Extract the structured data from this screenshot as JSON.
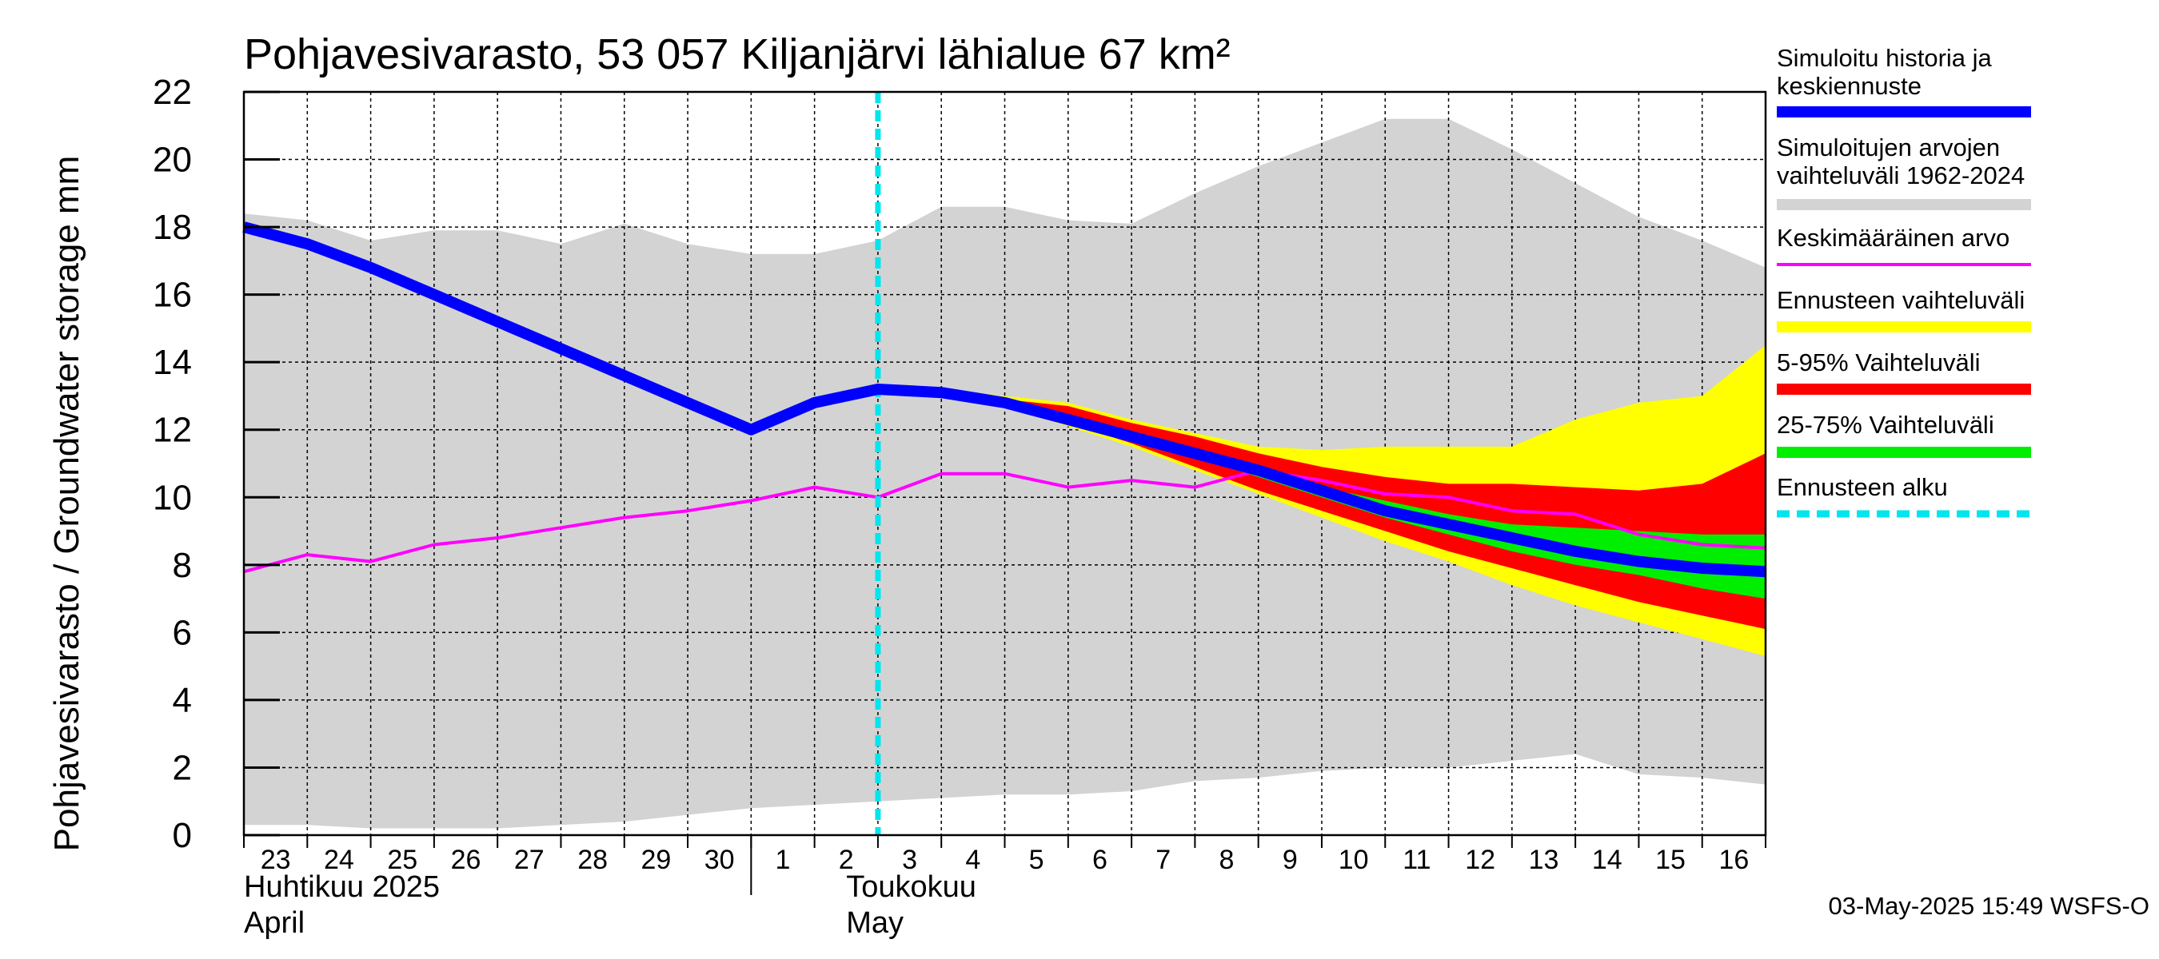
{
  "chart_data": {
    "type": "area",
    "title": "Pohjavesivarasto, 53 057 Kiljanjärvi lähialue 67 km²",
    "ylabel": "Pohjavesivarasto / Groundwater storage   mm",
    "ylim": [
      0,
      22
    ],
    "yticks": [
      0,
      2,
      4,
      6,
      8,
      10,
      12,
      14,
      16,
      18,
      20,
      22
    ],
    "x_day_labels": [
      "23",
      "24",
      "25",
      "26",
      "27",
      "28",
      "29",
      "30",
      "1",
      "2",
      "3",
      "4",
      "5",
      "6",
      "7",
      "8",
      "9",
      "10",
      "11",
      "12",
      "13",
      "14",
      "15",
      "16"
    ],
    "x_range": [
      0,
      24
    ],
    "month_labels": [
      {
        "line1": "Huhtikuu  2025",
        "line2": "April",
        "x": 0
      },
      {
        "line1": "Toukokuu",
        "line2": "May",
        "x": 9.5
      }
    ],
    "month_divider_x": 8,
    "forecast_start_x": 10.0,
    "timestamp": "03-May-2025 15:49 WSFS-O",
    "series": [
      {
        "name": "Simuloitujen arvojen vaihteluväli 1962-2024",
        "color": "#d3d3d3",
        "x": [
          0,
          1,
          2,
          3,
          4,
          5,
          6,
          7,
          8,
          9,
          10,
          11,
          12,
          13,
          14,
          15,
          16,
          17,
          18,
          19,
          20,
          21,
          22,
          23,
          24
        ],
        "upper": [
          18.4,
          18.2,
          17.6,
          17.9,
          17.9,
          17.5,
          18.1,
          17.5,
          17.2,
          17.2,
          17.6,
          18.6,
          18.6,
          18.2,
          18.1,
          19.0,
          19.8,
          20.5,
          21.2,
          21.2,
          20.3,
          19.3,
          18.3,
          17.6,
          16.8
        ],
        "lower": [
          0.3,
          0.3,
          0.2,
          0.2,
          0.2,
          0.3,
          0.4,
          0.6,
          0.8,
          0.9,
          1.0,
          1.1,
          1.2,
          1.2,
          1.3,
          1.6,
          1.7,
          1.9,
          2.0,
          2.0,
          2.2,
          2.4,
          1.8,
          1.7,
          1.5
        ]
      },
      {
        "name": "Ennusteen vaihteluväli",
        "color": "#ffff00",
        "x": [
          10,
          11,
          12,
          13,
          14,
          15,
          16,
          17,
          18,
          19,
          20,
          21,
          22,
          23,
          24
        ],
        "upper": [
          13.2,
          13.2,
          13.0,
          12.8,
          12.3,
          11.9,
          11.5,
          11.4,
          11.5,
          11.5,
          11.5,
          12.3,
          12.8,
          13.0,
          14.5
        ],
        "lower": [
          13.2,
          13.1,
          12.7,
          12.1,
          11.5,
          10.8,
          10.1,
          9.4,
          8.7,
          8.1,
          7.4,
          6.8,
          6.3,
          5.8,
          5.3
        ]
      },
      {
        "name": "5-95% Vaihteluväli",
        "color": "#ff0000",
        "x": [
          10,
          11,
          12,
          13,
          14,
          15,
          16,
          17,
          18,
          19,
          20,
          21,
          22,
          23,
          24
        ],
        "upper": [
          13.2,
          13.2,
          12.9,
          12.7,
          12.2,
          11.8,
          11.3,
          10.9,
          10.6,
          10.4,
          10.4,
          10.3,
          10.2,
          10.4,
          11.3
        ],
        "lower": [
          13.2,
          13.1,
          12.7,
          12.2,
          11.6,
          10.9,
          10.2,
          9.6,
          9.0,
          8.4,
          7.9,
          7.4,
          6.9,
          6.5,
          6.1
        ]
      },
      {
        "name": "25-75% Vaihteluväli",
        "color": "#00ee00",
        "x": [
          10,
          11,
          12,
          13,
          14,
          15,
          16,
          17,
          18,
          19,
          20,
          21,
          22,
          23,
          24
        ],
        "upper": [
          13.2,
          13.2,
          12.8,
          12.4,
          11.9,
          11.4,
          10.8,
          10.3,
          9.9,
          9.5,
          9.2,
          9.1,
          9.0,
          8.9,
          8.9
        ],
        "lower": [
          13.2,
          13.1,
          12.7,
          12.3,
          11.8,
          11.2,
          10.6,
          10.0,
          9.4,
          8.9,
          8.4,
          8.0,
          7.7,
          7.3,
          7.0
        ]
      },
      {
        "name": "Keskimääräinen arvo",
        "color": "#ff00ff",
        "x": [
          0,
          1,
          2,
          3,
          4,
          5,
          6,
          7,
          8,
          9,
          10,
          11,
          12,
          13,
          14,
          15,
          16,
          17,
          18,
          19,
          20,
          21,
          22,
          23,
          24
        ],
        "values": [
          7.8,
          8.3,
          8.1,
          8.6,
          8.8,
          9.1,
          9.4,
          9.6,
          9.9,
          10.3,
          10.0,
          10.7,
          10.7,
          10.3,
          10.5,
          10.3,
          10.8,
          10.5,
          10.1,
          10.0,
          9.6,
          9.5,
          8.9,
          8.6,
          8.5
        ]
      },
      {
        "name": "Simuloitu historia ja keskiennuste",
        "color": "#0000ff",
        "x": [
          0,
          1,
          2,
          3,
          4,
          5,
          6,
          7,
          8,
          9,
          10,
          11,
          12,
          13,
          14,
          15,
          16,
          17,
          18,
          19,
          20,
          21,
          22,
          23,
          24
        ],
        "values": [
          18.0,
          17.5,
          16.8,
          16.0,
          15.2,
          14.4,
          13.6,
          12.8,
          12.0,
          12.8,
          13.2,
          13.1,
          12.8,
          12.3,
          11.8,
          11.3,
          10.8,
          10.2,
          9.6,
          9.2,
          8.8,
          8.4,
          8.1,
          7.9,
          7.8
        ]
      }
    ],
    "legend": [
      {
        "label_lines": [
          "Simuloitu historia ja",
          "keskiennuste"
        ],
        "color": "#0000ff",
        "style": "thick"
      },
      {
        "label_lines": [
          "Simuloitujen arvojen",
          "vaihteluväli 1962-2024"
        ],
        "color": "#d3d3d3",
        "style": "thick"
      },
      {
        "label_lines": [
          "Keskimääräinen arvo"
        ],
        "color": "#ff00ff",
        "style": "thin"
      },
      {
        "label_lines": [
          "Ennusteen vaihteluväli"
        ],
        "color": "#ffff00",
        "style": "thick"
      },
      {
        "label_lines": [
          "5-95% Vaihteluväli"
        ],
        "color": "#ff0000",
        "style": "thick"
      },
      {
        "label_lines": [
          "25-75% Vaihteluväli"
        ],
        "color": "#00ee00",
        "style": "thick"
      },
      {
        "label_lines": [
          "Ennusteen alku"
        ],
        "color": "#00e5ee",
        "style": "dashed"
      }
    ]
  }
}
